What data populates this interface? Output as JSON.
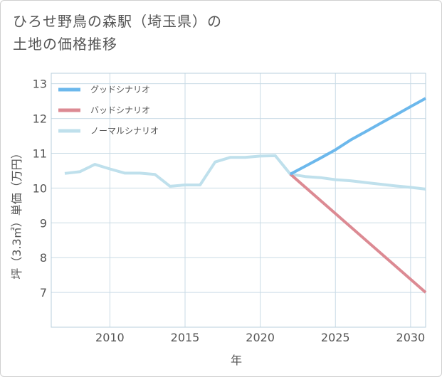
{
  "title": {
    "line1": "ひろせ野鳥の森駅（埼玉県）の",
    "line2": "土地の価格推移"
  },
  "chart_data": {
    "type": "line",
    "xlabel": "年",
    "ylabel": "坪（3.3㎡）単価（万円）",
    "xlim": [
      2006.1,
      2031
    ],
    "ylim": [
      6.0,
      13.3
    ],
    "xticks": [
      2010,
      2015,
      2020,
      2025,
      2030
    ],
    "yticks": [
      7,
      8,
      9,
      10,
      11,
      12,
      13
    ],
    "grid": true,
    "legend_position": "top-left",
    "series": [
      {
        "name": "グッドシナリオ",
        "color": "#6cb8ec",
        "x": [
          2022,
          2023,
          2024,
          2025,
          2026,
          2027,
          2028,
          2029,
          2030,
          2031
        ],
        "values": [
          10.4,
          10.63,
          10.86,
          11.1,
          11.38,
          11.62,
          11.86,
          12.1,
          12.34,
          12.58
        ]
      },
      {
        "name": "バッドシナリオ",
        "color": "#dc8a93",
        "x": [
          2022,
          2031
        ],
        "values": [
          10.4,
          7.0
        ]
      },
      {
        "name": "ノーマルシナリオ",
        "color": "#bfe0ec",
        "x": [
          2007,
          2008,
          2009,
          2010,
          2011,
          2012,
          2013,
          2014,
          2015,
          2016,
          2017,
          2018,
          2019,
          2020,
          2021,
          2022,
          2023,
          2024,
          2025,
          2026,
          2027,
          2028,
          2029,
          2030,
          2031
        ],
        "values": [
          10.42,
          10.47,
          10.68,
          10.55,
          10.43,
          10.43,
          10.39,
          10.05,
          10.09,
          10.09,
          10.75,
          10.88,
          10.88,
          10.92,
          10.93,
          10.4,
          10.33,
          10.3,
          10.24,
          10.21,
          10.16,
          10.11,
          10.06,
          10.02,
          9.97
        ]
      }
    ]
  }
}
